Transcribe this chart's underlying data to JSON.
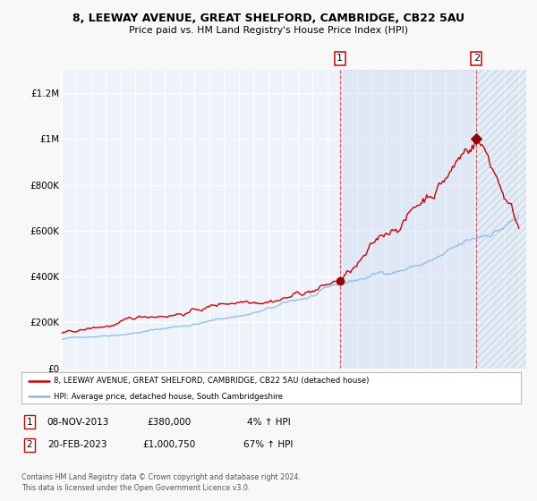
{
  "title_line1": "8, LEEWAY AVENUE, GREAT SHELFORD, CAMBRIDGE, CB22 5AU",
  "title_line2": "Price paid vs. HM Land Registry's House Price Index (HPI)",
  "ylim": [
    0,
    1300000
  ],
  "xlim_start": 1995.0,
  "xlim_end": 2026.5,
  "yticks": [
    0,
    200000,
    400000,
    600000,
    800000,
    1000000,
    1200000
  ],
  "ytick_labels": [
    "£0",
    "£200K",
    "£400K",
    "£600K",
    "£800K",
    "£1M",
    "£1.2M"
  ],
  "background_color": "#f8f8f8",
  "plot_bg_color": "#eef2fa",
  "grid_color": "#ffffff",
  "sale1_date": 2013.86,
  "sale1_price": 380000,
  "sale2_date": 2023.13,
  "sale2_price": 1000750,
  "legend_house": "8, LEEWAY AVENUE, GREAT SHELFORD, CAMBRIDGE, CB22 5AU (detached house)",
  "legend_hpi": "HPI: Average price, detached house, South Cambridgeshire",
  "note1_date": "08-NOV-2013",
  "note1_price": "£380,000",
  "note1_hpi": "4% ↑ HPI",
  "note2_date": "20-FEB-2023",
  "note2_price": "£1,000,750",
  "note2_hpi": "67% ↑ HPI",
  "footer": "Contains HM Land Registry data © Crown copyright and database right 2024.\nThis data is licensed under the Open Government Licence v3.0.",
  "house_line_color": "#cc0000",
  "hpi_line_color": "#88bbe8",
  "sale_dot_color": "#990000",
  "vline_color": "#dd4444",
  "shade_color": "#d0dff0",
  "hatch_color": "#c0cce0"
}
